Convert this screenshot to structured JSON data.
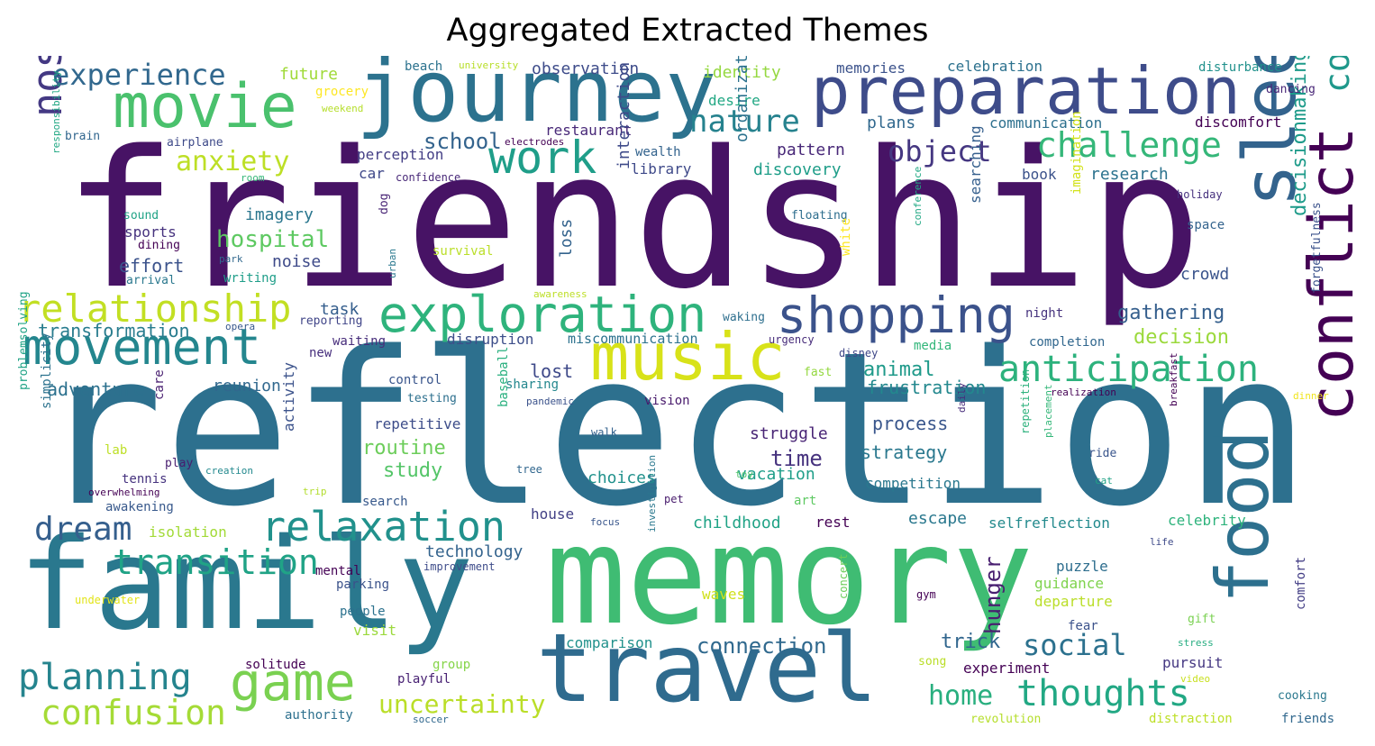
{
  "title": "Aggregated Extracted Themes",
  "words": [
    {
      "text": "friendship",
      "color": "#471365"
    },
    {
      "text": "reflection",
      "color": "#2d708e"
    },
    {
      "text": "memory",
      "color": "#3fbc73"
    },
    {
      "text": "family",
      "color": "#2a788e"
    },
    {
      "text": "travel",
      "color": "#2f6b8e"
    },
    {
      "text": "journey",
      "color": "#2c728e"
    },
    {
      "text": "preparation",
      "color": "#3e4c8a"
    },
    {
      "text": "movie",
      "color": "#4ac16d"
    },
    {
      "text": "sleep",
      "color": "#33638d"
    },
    {
      "text": "food",
      "color": "#2d708e"
    },
    {
      "text": "music",
      "color": "#d8e219"
    },
    {
      "text": "conflict",
      "color": "#440154"
    },
    {
      "text": "exploration",
      "color": "#2eb37c"
    },
    {
      "text": "shopping",
      "color": "#3b528b"
    },
    {
      "text": "movement",
      "color": "#24868e"
    },
    {
      "text": "game",
      "color": "#7ad151"
    },
    {
      "text": "anticipation",
      "color": "#2db27d"
    },
    {
      "text": "relaxation",
      "color": "#21918c"
    },
    {
      "text": "work",
      "color": "#1f9e89"
    },
    {
      "text": "challenge",
      "color": "#35b779"
    },
    {
      "text": "nostalgia",
      "color": "#443983"
    },
    {
      "text": "relationship",
      "color": "#c2df23"
    },
    {
      "text": "conversation",
      "color": "#1f988b"
    },
    {
      "text": "transition",
      "color": "#20a386"
    },
    {
      "text": "thoughts",
      "color": "#22a884"
    },
    {
      "text": "planning",
      "color": "#25848e"
    },
    {
      "text": "confusion",
      "color": "#a5db36"
    },
    {
      "text": "dream",
      "color": "#355f8d"
    },
    {
      "text": "experience",
      "color": "#31688e"
    },
    {
      "text": "nature",
      "color": "#26828e"
    },
    {
      "text": "object",
      "color": "#453781"
    },
    {
      "text": "anxiety",
      "color": "#bddf26"
    },
    {
      "text": "hospital",
      "color": "#5ec962"
    },
    {
      "text": "home",
      "color": "#29af7f"
    },
    {
      "text": "social",
      "color": "#2c718e"
    },
    {
      "text": "uncertainty",
      "color": "#bade28"
    },
    {
      "text": "school",
      "color": "#33638d"
    },
    {
      "text": "connection",
      "color": "#30698e"
    },
    {
      "text": "trick",
      "color": "#31668e"
    },
    {
      "text": "hunger",
      "color": "#481f70"
    },
    {
      "text": "time",
      "color": "#46327e"
    },
    {
      "text": "routine",
      "color": "#6ccd5a"
    },
    {
      "text": "study",
      "color": "#54c568"
    },
    {
      "text": "strategy",
      "color": "#2a788e"
    },
    {
      "text": "process",
      "color": "#39568c"
    },
    {
      "text": "struggle",
      "color": "#482475"
    },
    {
      "text": "lost",
      "color": "#3e4989"
    },
    {
      "text": "animal",
      "color": "#1f9a8a"
    },
    {
      "text": "frustration",
      "color": "#23888e"
    },
    {
      "text": "decision",
      "color": "#9bd93c"
    },
    {
      "text": "gathering",
      "color": "#355f8d"
    },
    {
      "text": "decisionmaking",
      "color": "#1e9b8a"
    },
    {
      "text": "crowd",
      "color": "#3a548c"
    },
    {
      "text": "adventure",
      "color": "#2c718e"
    },
    {
      "text": "reunion",
      "color": "#31688e"
    },
    {
      "text": "transformation",
      "color": "#287c8e"
    },
    {
      "text": "task",
      "color": "#355e8d"
    },
    {
      "text": "effort",
      "color": "#3b528b"
    },
    {
      "text": "noise",
      "color": "#3e4a89"
    },
    {
      "text": "sports",
      "color": "#46327e"
    },
    {
      "text": "imagery",
      "color": "#2a768e"
    },
    {
      "text": "future",
      "color": "#a0da39"
    },
    {
      "text": "identity",
      "color": "#95d840"
    },
    {
      "text": "observation",
      "color": "#3e4c8a"
    },
    {
      "text": "restaurant",
      "color": "#482878"
    },
    {
      "text": "perception",
      "color": "#433e85"
    },
    {
      "text": "car",
      "color": "#3f4889"
    },
    {
      "text": "discovery",
      "color": "#1f9e89"
    },
    {
      "text": "pattern",
      "color": "#482878"
    },
    {
      "text": "plans",
      "color": "#31688e"
    },
    {
      "text": "communication",
      "color": "#2d708e"
    },
    {
      "text": "discomfort",
      "color": "#440154"
    },
    {
      "text": "research",
      "color": "#2c738e"
    },
    {
      "text": "book",
      "color": "#3b528b"
    },
    {
      "text": "celebration",
      "color": "#2c718e"
    },
    {
      "text": "memories",
      "color": "#3b528b"
    },
    {
      "text": "disturbance",
      "color": "#21918c"
    },
    {
      "text": "dancing",
      "color": "#482677"
    },
    {
      "text": "desire",
      "color": "#22a884"
    },
    {
      "text": "library",
      "color": "#3e4989"
    },
    {
      "text": "wealth",
      "color": "#33638d"
    },
    {
      "text": "beach",
      "color": "#2c728e"
    },
    {
      "text": "university",
      "color": "#b8de29"
    },
    {
      "text": "grocery",
      "color": "#fde725"
    },
    {
      "text": "weekend",
      "color": "#b5de2b"
    },
    {
      "text": "brain",
      "color": "#31668e"
    },
    {
      "text": "airplane",
      "color": "#3e4a89"
    },
    {
      "text": "electrodes",
      "color": "#440154"
    },
    {
      "text": "confidence",
      "color": "#482878"
    },
    {
      "text": "room",
      "color": "#35b779"
    },
    {
      "text": "sound",
      "color": "#20a386"
    },
    {
      "text": "dining",
      "color": "#440154"
    },
    {
      "text": "arrival",
      "color": "#2a788e"
    },
    {
      "text": "park",
      "color": "#31688e"
    },
    {
      "text": "writing",
      "color": "#1f9e89"
    },
    {
      "text": "survival",
      "color": "#bade28"
    },
    {
      "text": "floating",
      "color": "#2e6e8e"
    },
    {
      "text": "space",
      "color": "#33638d"
    },
    {
      "text": "holiday",
      "color": "#46317e"
    },
    {
      "text": "reporting",
      "color": "#404588"
    },
    {
      "text": "opera",
      "color": "#38588c"
    },
    {
      "text": "waiting",
      "color": "#472d7b"
    },
    {
      "text": "disruption",
      "color": "#3d4e8a"
    },
    {
      "text": "miscommunication",
      "color": "#2c728e"
    },
    {
      "text": "urgency",
      "color": "#472c7a"
    },
    {
      "text": "waking",
      "color": "#2e6f8e"
    },
    {
      "text": "night",
      "color": "#46337e"
    },
    {
      "text": "completion",
      "color": "#31678e"
    },
    {
      "text": "media",
      "color": "#32b67a"
    },
    {
      "text": "disney",
      "color": "#3f4788"
    },
    {
      "text": "new",
      "color": "#472f7d"
    },
    {
      "text": "control",
      "color": "#39558c"
    },
    {
      "text": "testing",
      "color": "#2d708e"
    },
    {
      "text": "sharing",
      "color": "#24878e"
    },
    {
      "text": "pandemic",
      "color": "#3b528b"
    },
    {
      "text": "vision",
      "color": "#481a6c"
    },
    {
      "text": "fast",
      "color": "#94d840"
    },
    {
      "text": "realization",
      "color": "#440154"
    },
    {
      "text": "dinner",
      "color": "#f0e51c"
    },
    {
      "text": "repetitive",
      "color": "#3d4d8a"
    },
    {
      "text": "lab",
      "color": "#bddf26"
    },
    {
      "text": "play",
      "color": "#481d6f"
    },
    {
      "text": "tennis",
      "color": "#46337f"
    },
    {
      "text": "creation",
      "color": "#23898e"
    },
    {
      "text": "trip",
      "color": "#b2dd2d"
    },
    {
      "text": "overwhelming",
      "color": "#440154"
    },
    {
      "text": "awakening",
      "color": "#38598c"
    },
    {
      "text": "search",
      "color": "#38598c"
    },
    {
      "text": "walk",
      "color": "#33628d"
    },
    {
      "text": "tree",
      "color": "#31678e"
    },
    {
      "text": "pet",
      "color": "#481b6d"
    },
    {
      "text": "choices",
      "color": "#21918c"
    },
    {
      "text": "vacation",
      "color": "#1f9e89"
    },
    {
      "text": "art",
      "color": "#5ec962"
    },
    {
      "text": "toy",
      "color": "#4ec36b"
    },
    {
      "text": "ride",
      "color": "#39558c"
    },
    {
      "text": "cat",
      "color": "#20a386"
    },
    {
      "text": "competition",
      "color": "#2a788e"
    },
    {
      "text": "escape",
      "color": "#2a788e"
    },
    {
      "text": "selfreflection",
      "color": "#238a8d"
    },
    {
      "text": "celebrity",
      "color": "#2eb37c"
    },
    {
      "text": "childhood",
      "color": "#20a386"
    },
    {
      "text": "rest",
      "color": "#440154"
    },
    {
      "text": "house",
      "color": "#424086"
    },
    {
      "text": "focus",
      "color": "#39568c"
    },
    {
      "text": "isolation",
      "color": "#a2da37"
    },
    {
      "text": "technology",
      "color": "#33638d"
    },
    {
      "text": "improvement",
      "color": "#3e4c8a"
    },
    {
      "text": "mental",
      "color": "#440154"
    },
    {
      "text": "parking",
      "color": "#3b528b"
    },
    {
      "text": "people",
      "color": "#2c728e"
    },
    {
      "text": "visit",
      "color": "#9bd93c"
    },
    {
      "text": "underwater",
      "color": "#e2e418"
    },
    {
      "text": "solitude",
      "color": "#440154"
    },
    {
      "text": "group",
      "color": "#86d549"
    },
    {
      "text": "playful",
      "color": "#482173"
    },
    {
      "text": "authority",
      "color": "#2d708e"
    },
    {
      "text": "soccer",
      "color": "#31688e"
    },
    {
      "text": "comparison",
      "color": "#21918c"
    },
    {
      "text": "waves",
      "color": "#d0e11c"
    },
    {
      "text": "puzzle",
      "color": "#2e6e8e"
    },
    {
      "text": "guidance",
      "color": "#7fd34e"
    },
    {
      "text": "departure",
      "color": "#bade28"
    },
    {
      "text": "fear",
      "color": "#3b528b"
    },
    {
      "text": "gym",
      "color": "#440154"
    },
    {
      "text": "concert",
      "color": "#6ccd5a"
    },
    {
      "text": "experiment",
      "color": "#440154"
    },
    {
      "text": "song",
      "color": "#bade28"
    },
    {
      "text": "pursuit",
      "color": "#453882"
    },
    {
      "text": "video",
      "color": "#c8e020"
    },
    {
      "text": "stress",
      "color": "#27ad81"
    },
    {
      "text": "gift",
      "color": "#7ad151"
    },
    {
      "text": "life",
      "color": "#3e4a89"
    },
    {
      "text": "cooking",
      "color": "#2a788e"
    },
    {
      "text": "revolution",
      "color": "#b5de2b"
    },
    {
      "text": "distraction",
      "color": "#bddf26"
    },
    {
      "text": "friends",
      "color": "#31688e"
    },
    {
      "text": "comfort",
      "color": "#433e85"
    },
    {
      "text": "forgetfulness",
      "color": "#3b528b"
    },
    {
      "text": "breakfast",
      "color": "#440154"
    },
    {
      "text": "placement",
      "color": "#35b779"
    },
    {
      "text": "repetition",
      "color": "#2db27d"
    },
    {
      "text": "daily",
      "color": "#472d7b"
    },
    {
      "text": "imagination",
      "color": "#d2e21b"
    },
    {
      "text": "searching",
      "color": "#355f8d"
    },
    {
      "text": "conference",
      "color": "#22a884"
    },
    {
      "text": "white",
      "color": "#fde725"
    },
    {
      "text": "organization",
      "color": "#2c728e"
    },
    {
      "text": "interaction",
      "color": "#3e4a89"
    },
    {
      "text": "loss",
      "color": "#33638d"
    },
    {
      "text": "urban",
      "color": "#2a788e"
    },
    {
      "text": "awareness",
      "color": "#bddf26"
    },
    {
      "text": "dog",
      "color": "#482475"
    },
    {
      "text": "activity",
      "color": "#3b528b"
    },
    {
      "text": "care",
      "color": "#481f70"
    },
    {
      "text": "baseball",
      "color": "#2ab07f"
    },
    {
      "text": "investigation",
      "color": "#2a788e"
    },
    {
      "text": "responsibility",
      "color": "#22a884"
    },
    {
      "text": "simplicity",
      "color": "#2c728e"
    },
    {
      "text": "problemsolving",
      "color": "#20a386"
    }
  ]
}
